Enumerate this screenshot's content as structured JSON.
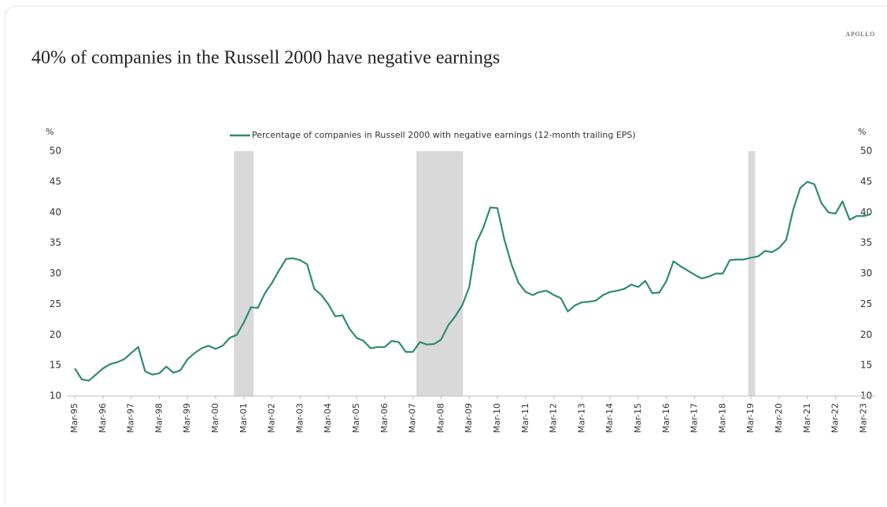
{
  "brand": "APOLLO",
  "chart_data": {
    "type": "line",
    "title": "40% of companies in the Russell 2000 have negative earnings",
    "y_label": "%",
    "y2_label": "%",
    "categories": [
      "Mar-95",
      null,
      null,
      null,
      "Mar-96",
      null,
      null,
      null,
      "Mar-97",
      null,
      null,
      null,
      "Mar-98",
      null,
      null,
      null,
      "Mar-99",
      null,
      null,
      null,
      "Mar-00",
      null,
      null,
      null,
      "Mar-01",
      null,
      null,
      null,
      "Mar-02",
      null,
      null,
      null,
      "Mar-03",
      null,
      null,
      null,
      "Mar-04",
      null,
      null,
      null,
      "Mar-05",
      null,
      null,
      null,
      "Mar-06",
      null,
      null,
      null,
      "Mar-07",
      null,
      null,
      null,
      "Mar-08",
      null,
      null,
      null,
      "Mar-09",
      null,
      null,
      null,
      "Mar-10",
      null,
      null,
      null,
      "Mar-11",
      null,
      null,
      null,
      "Mar-12",
      null,
      null,
      null,
      "Mar-13",
      null,
      null,
      null,
      "Mar-14",
      null,
      null,
      null,
      "Mar-15",
      null,
      null,
      null,
      "Mar-16",
      null,
      null,
      null,
      "Mar-17",
      null,
      null,
      null,
      "Mar-18",
      null,
      null,
      null,
      "Mar-19",
      null,
      null,
      null,
      "Mar-20",
      null,
      null,
      null,
      "Mar-21",
      null,
      null,
      null,
      "Mar-22",
      null,
      null,
      null,
      "Mar-23",
      null
    ],
    "series": [
      {
        "name": "Percentage of companies in Russell 2000 with negative earnings (12-month trailing EPS)",
        "color": "#2e8b73",
        "values": [
          14.5,
          12.7,
          12.5,
          13.5,
          14.5,
          15.2,
          15.5,
          16.0,
          17.0,
          18.0,
          14.0,
          13.5,
          13.7,
          14.8,
          13.8,
          14.2,
          16.0,
          17.0,
          17.8,
          18.2,
          17.7,
          18.2,
          19.5,
          20.0,
          22.0,
          24.5,
          24.4,
          26.8,
          28.5,
          30.5,
          32.4,
          32.5,
          32.2,
          31.5,
          27.5,
          26.5,
          25.0,
          23.0,
          23.2,
          21.0,
          19.5,
          19.0,
          17.8,
          18.0,
          18.0,
          19.0,
          18.8,
          17.2,
          17.2,
          18.8,
          18.4,
          18.5,
          19.2,
          21.5,
          23.0,
          24.8,
          27.8,
          35.0,
          37.5,
          40.8,
          40.7,
          35.5,
          31.5,
          28.5,
          27.0,
          26.5,
          27.0,
          27.2,
          26.5,
          26.0,
          23.8,
          24.8,
          25.3,
          25.4,
          25.6,
          26.5,
          27.0,
          27.2,
          27.5,
          28.2,
          27.8,
          28.8,
          26.8,
          26.9,
          28.8,
          32.0,
          31.2,
          30.5,
          29.8,
          29.2,
          29.5,
          30.0,
          30.0,
          32.2,
          32.3,
          32.3,
          32.6,
          32.8,
          33.7,
          33.5,
          34.2,
          35.5,
          40.5,
          44.0,
          45.0,
          44.6,
          41.5,
          40.0,
          39.8,
          41.8,
          38.8,
          39.4,
          39.4,
          39.7
        ]
      }
    ],
    "shaded_periods": [
      [
        22.6,
        25.4
      ],
      [
        48.5,
        55.1
      ],
      [
        95.6,
        96.6
      ]
    ],
    "shade_color": "#d9d9d9",
    "ylim": [
      10,
      50
    ],
    "yticks": [
      10,
      15,
      20,
      25,
      30,
      35,
      40,
      45,
      50
    ],
    "y2lim": [
      10,
      50
    ],
    "y2ticks": [
      10,
      15,
      20,
      25,
      30,
      35,
      40,
      45,
      50
    ],
    "grid": false,
    "legend": "top"
  }
}
